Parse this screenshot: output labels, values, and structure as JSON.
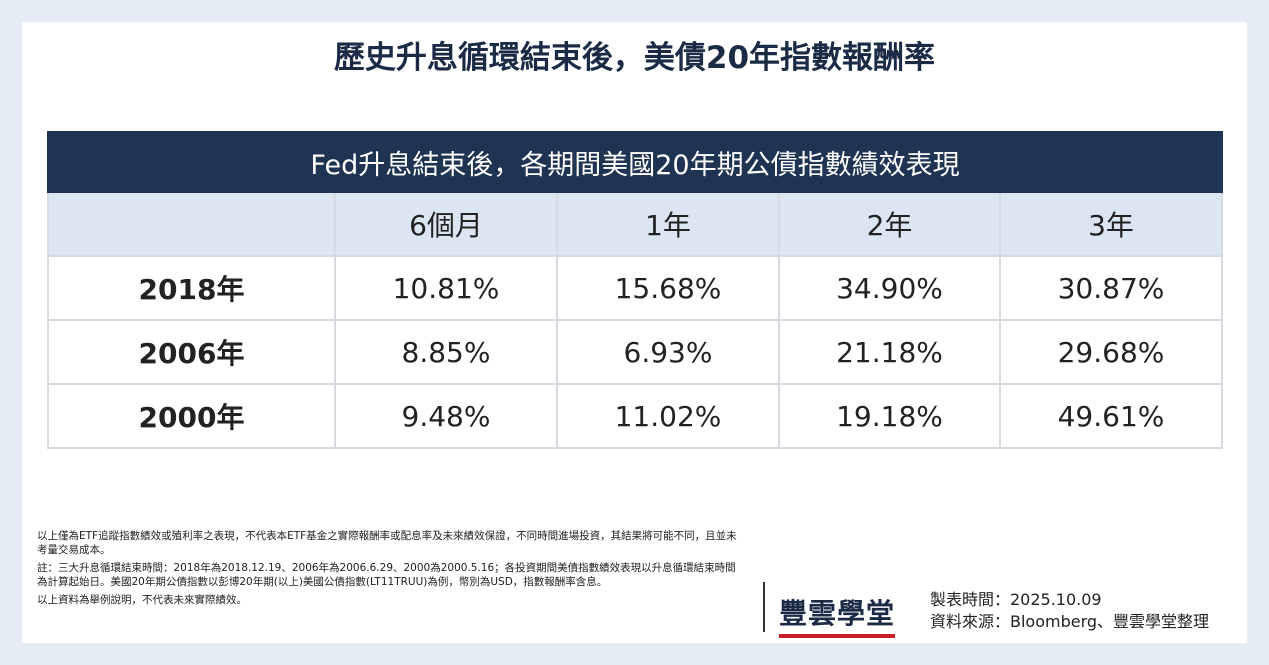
{
  "header": {
    "title": "歷史升息循環結束後，美債20年指數報酬率"
  },
  "table": {
    "title": "Fed升息結束後，各期間美國20年期公債指數績效表現",
    "columns": [
      "6個月",
      "1年",
      "2年",
      "3年"
    ],
    "rows": [
      {
        "label": "2018年",
        "values": [
          "10.81%",
          "15.68%",
          "34.90%",
          "30.87%"
        ]
      },
      {
        "label": "2006年",
        "values": [
          "8.85%",
          "6.93%",
          "21.18%",
          "29.68%"
        ]
      },
      {
        "label": "2000年",
        "values": [
          "9.48%",
          "11.02%",
          "19.18%",
          "49.61%"
        ]
      }
    ]
  },
  "notes": [
    "以上僅為ETF追蹤指數績效或殖利率之表現，不代表本ETF基金之實際報酬率或配息率及未來績效保證，不同時間進場投資，其結果將可能不同，且並未考量交易成本。",
    "註：三大升息循環結束時間：2018年為2018.12.19、2006年為2006.6.29、2000為2000.5.16；各投資期間美債指數績效表現以升息循環結束時間為計算起始日。美國20年期公債指數以彭博20年期(以上)美國公債指數(LT11TRUU)為例，幣別為USD，指數報酬率含息。",
    "以上資料為舉例說明，不代表未來實際績效。"
  ],
  "footer": {
    "brand": "豐雲學堂",
    "meta": [
      "製表時間：2025.10.09",
      "資料來源：Bloomberg、豐雲學堂整理"
    ]
  }
}
